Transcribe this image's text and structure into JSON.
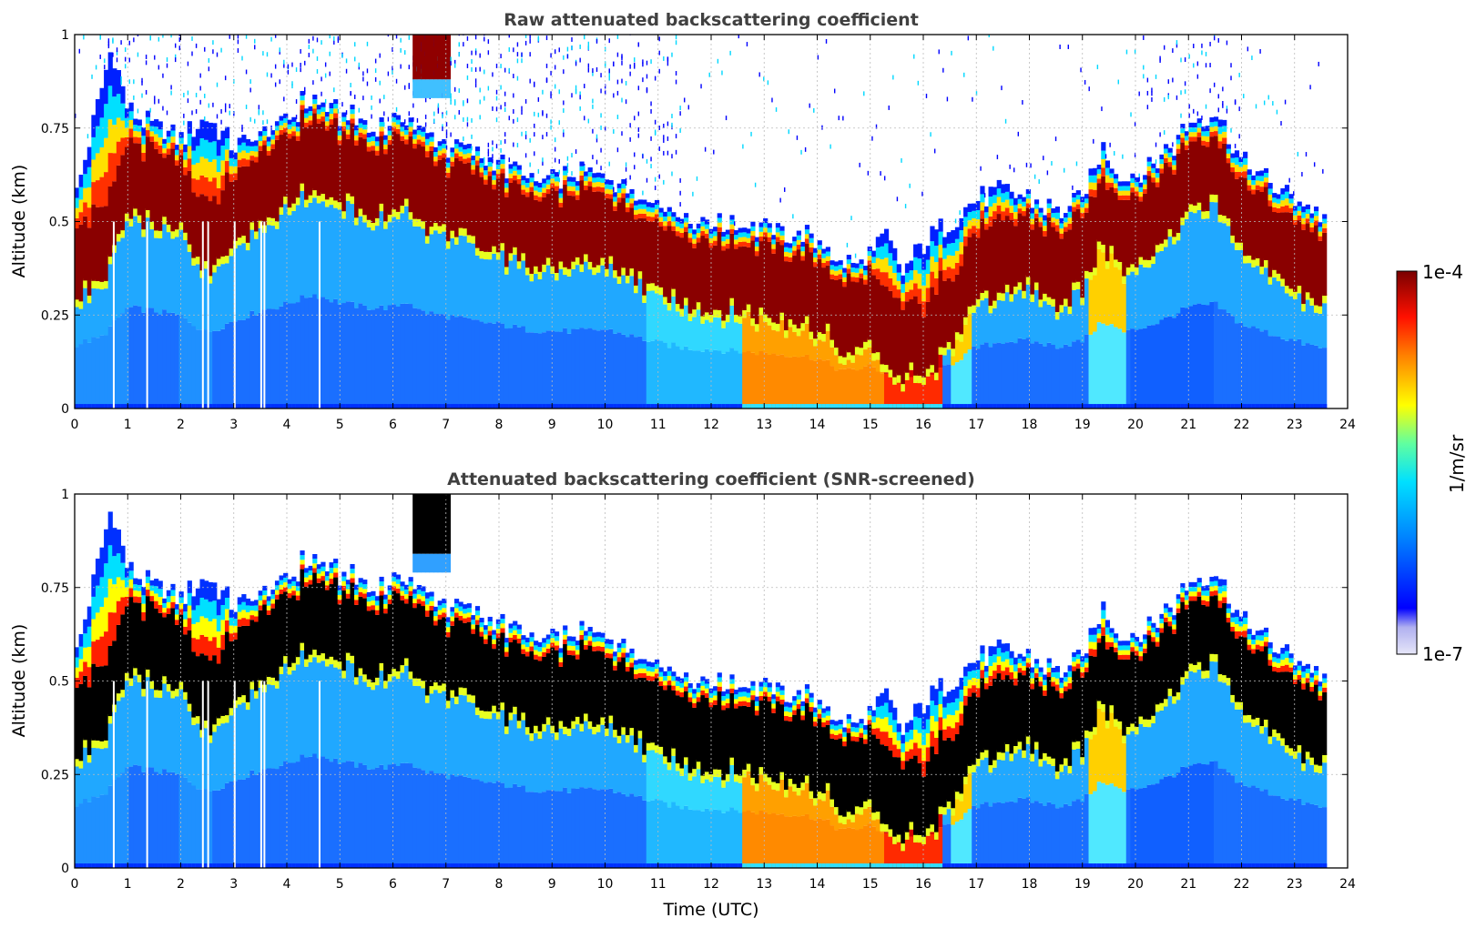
{
  "chart_data": [
    {
      "type": "heatmap",
      "title": "Raw attenuated backscattering coefficient",
      "xlabel": "",
      "ylabel": "Altitude (km)",
      "xlim": [
        0,
        24
      ],
      "ylim": [
        0,
        1
      ],
      "x_ticks": [
        "0",
        "1",
        "2",
        "3",
        "4",
        "5",
        "6",
        "7",
        "8",
        "9",
        "10",
        "11",
        "12",
        "13",
        "14",
        "15",
        "16",
        "17",
        "18",
        "19",
        "20",
        "21",
        "22",
        "23",
        "24"
      ],
      "y_ticks": [
        "0",
        "0.25",
        "0.5",
        "0.75",
        "1"
      ],
      "grid": true,
      "colormap": "jet",
      "color_scale": "log",
      "data_end_time": 23.6,
      "layer_top_km": [
        [
          0,
          0.55
        ],
        [
          0.7,
          0.97
        ],
        [
          1,
          0.8
        ],
        [
          1.5,
          0.75
        ],
        [
          2,
          0.72
        ],
        [
          2.5,
          0.78
        ],
        [
          3,
          0.7
        ],
        [
          3.5,
          0.72
        ],
        [
          4,
          0.74
        ],
        [
          4.5,
          0.8
        ],
        [
          5,
          0.78
        ],
        [
          5.5,
          0.74
        ],
        [
          6,
          0.72
        ],
        [
          6.3,
          0.76
        ],
        [
          6.5,
          0.74
        ],
        [
          7,
          0.7
        ],
        [
          7.5,
          0.62
        ],
        [
          8,
          0.6
        ],
        [
          8.5,
          0.57
        ],
        [
          9,
          0.56
        ],
        [
          9.5,
          0.55
        ],
        [
          10,
          0.57
        ],
        [
          10.5,
          0.5
        ],
        [
          11,
          0.47
        ],
        [
          11.5,
          0.44
        ],
        [
          12,
          0.42
        ],
        [
          12.5,
          0.42
        ],
        [
          13,
          0.41
        ],
        [
          13.5,
          0.44
        ],
        [
          14,
          0.43
        ],
        [
          14.5,
          0.34
        ],
        [
          15,
          0.4
        ],
        [
          15.3,
          0.46
        ],
        [
          15.6,
          0.36
        ],
        [
          16,
          0.44
        ],
        [
          16.5,
          0.5
        ],
        [
          17,
          0.56
        ],
        [
          17.5,
          0.58
        ],
        [
          18,
          0.56
        ],
        [
          18.5,
          0.52
        ],
        [
          19,
          0.55
        ],
        [
          19.4,
          0.7
        ],
        [
          19.8,
          0.6
        ],
        [
          20.5,
          0.65
        ],
        [
          21,
          0.75
        ],
        [
          21.5,
          0.8
        ],
        [
          22,
          0.66
        ],
        [
          22.5,
          0.6
        ],
        [
          23,
          0.56
        ],
        [
          23.6,
          0.5
        ]
      ],
      "layer_peak_km": [
        [
          0,
          0.38
        ],
        [
          0.5,
          0.42
        ],
        [
          1,
          0.6
        ],
        [
          1.5,
          0.58
        ],
        [
          2,
          0.55
        ],
        [
          2.5,
          0.45
        ],
        [
          3,
          0.52
        ],
        [
          3.5,
          0.58
        ],
        [
          4,
          0.62
        ],
        [
          4.5,
          0.68
        ],
        [
          5,
          0.63
        ],
        [
          5.5,
          0.6
        ],
        [
          6,
          0.6
        ],
        [
          6.3,
          0.64
        ],
        [
          6.5,
          0.58
        ],
        [
          7,
          0.55
        ],
        [
          7.5,
          0.52
        ],
        [
          8,
          0.5
        ],
        [
          8.5,
          0.47
        ],
        [
          9,
          0.46
        ],
        [
          9.5,
          0.46
        ],
        [
          10,
          0.47
        ],
        [
          10.5,
          0.43
        ],
        [
          11,
          0.39
        ],
        [
          11.5,
          0.36
        ],
        [
          12,
          0.35
        ],
        [
          12.5,
          0.34
        ],
        [
          13,
          0.33
        ],
        [
          13.5,
          0.32
        ],
        [
          14,
          0.3
        ],
        [
          14.5,
          0.22
        ],
        [
          15,
          0.25
        ],
        [
          15.5,
          0.18
        ],
        [
          16,
          0.16
        ],
        [
          16.5,
          0.26
        ],
        [
          17,
          0.36
        ],
        [
          17.5,
          0.4
        ],
        [
          18,
          0.4
        ],
        [
          18.5,
          0.37
        ],
        [
          19,
          0.4
        ],
        [
          19.4,
          0.52
        ],
        [
          19.8,
          0.45
        ],
        [
          20.5,
          0.52
        ],
        [
          21,
          0.6
        ],
        [
          21.5,
          0.62
        ],
        [
          22,
          0.5
        ],
        [
          22.5,
          0.45
        ],
        [
          23,
          0.4
        ],
        [
          23.6,
          0.35
        ]
      ],
      "fog_periods_utc": [
        [
          12.6,
          15.3
        ],
        [
          15.3,
          16.4
        ]
      ],
      "high_cloud_period_utc": [
        6.35,
        7.1
      ]
    },
    {
      "type": "heatmap",
      "title": "Attenuated backscattering coefficient (SNR-screened)",
      "xlabel": "Time (UTC)",
      "ylabel": "Altitude (km)",
      "xlim": [
        0,
        24
      ],
      "ylim": [
        0,
        1
      ],
      "x_ticks": [
        "0",
        "1",
        "2",
        "3",
        "4",
        "5",
        "6",
        "7",
        "8",
        "9",
        "10",
        "11",
        "12",
        "13",
        "14",
        "15",
        "16",
        "17",
        "18",
        "19",
        "20",
        "21",
        "22",
        "23",
        "24"
      ],
      "y_ticks": [
        "0",
        "0.25",
        "0.5",
        "0.75",
        "1"
      ],
      "grid": true,
      "colormap": "jet",
      "color_scale": "log",
      "screened": true,
      "saturated_color": "#000000"
    }
  ],
  "colorbar": {
    "label": "1/m/sr",
    "max_label": "1e-4",
    "min_label": "1e-7"
  },
  "colors": {
    "jet_stops": [
      "#e6e6f8",
      "#0000ff",
      "#0080ff",
      "#00e6ff",
      "#50ffb0",
      "#c8ff3c",
      "#ffff00",
      "#ff9000",
      "#ff2000",
      "#a00000",
      "#800000"
    ],
    "title_color": "#404040",
    "grid_color": "#bbbbbb"
  }
}
